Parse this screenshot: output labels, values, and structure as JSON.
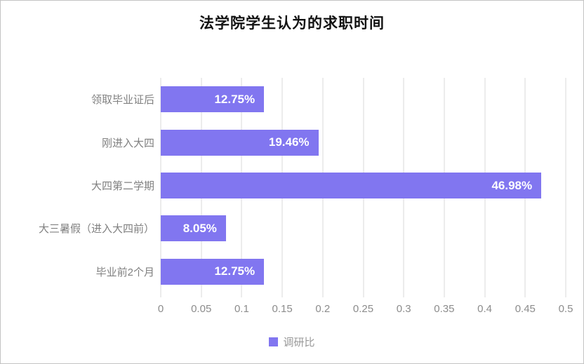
{
  "title": "法学院学生认为的求职时间",
  "legend": {
    "label": "调研比",
    "swatch_color": "#8176f0"
  },
  "colors": {
    "bar": "#8176f0",
    "gridline": "#d9d9d9",
    "frame_border": "#c3c3c3",
    "category_text": "#808080",
    "tick_text": "#8c8c8c",
    "value_text": "#ffffff",
    "title_text": "#111111"
  },
  "chart_data": {
    "type": "bar",
    "orientation": "horizontal",
    "title": "法学院学生认为的求职时间",
    "categories": [
      "领取毕业证后",
      "刚进入大四",
      "大四第二学期",
      "大三暑假（进入大四前）",
      "毕业前2个月"
    ],
    "values": [
      0.1275,
      0.1946,
      0.4698,
      0.0805,
      0.1275
    ],
    "value_labels": [
      "12.75%",
      "19.46%",
      "46.98%",
      "8.05%",
      "12.75%"
    ],
    "series_name": "调研比",
    "xlim": [
      0,
      0.5
    ],
    "x_ticks": [
      "0",
      "0.05",
      "0.1",
      "0.15",
      "0.2",
      "0.25",
      "0.3",
      "0.35",
      "0.4",
      "0.45",
      "0.5"
    ],
    "grid": true,
    "legend_position": "bottom"
  }
}
